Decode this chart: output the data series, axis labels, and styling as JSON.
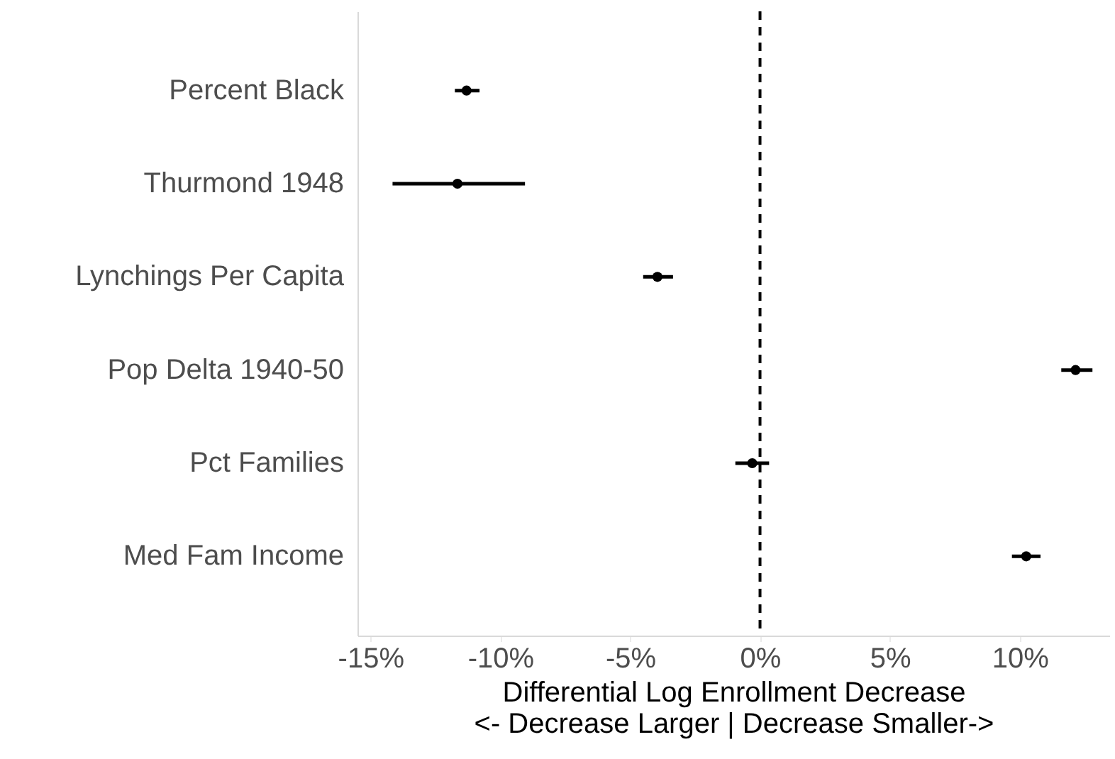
{
  "chart_data": {
    "type": "scatter",
    "orientation": "horizontal",
    "xlabel": "Differential Log Enrollment Decrease\n<- Decrease Larger | Decrease Smaller->",
    "categories": [
      "Percent Black",
      "Thurmond 1948",
      "Lynchings Per Capita",
      "Pop Delta 1940-50",
      "Pct Families",
      "Med Fam Income"
    ],
    "values": [
      -11.3,
      -11.65,
      -3.95,
      12.15,
      -0.3,
      10.25
    ],
    "errors": [
      [
        -11.75,
        -10.8
      ],
      [
        -14.15,
        -9.05
      ],
      [
        -4.5,
        -3.35
      ],
      [
        11.6,
        12.8
      ],
      [
        -0.95,
        0.35
      ],
      [
        9.7,
        10.8
      ]
    ],
    "color": "#000000",
    "marker": "circle",
    "xlim": [
      -15.5,
      13.45
    ],
    "xticks": [
      {
        "value": -15,
        "label": "-15%"
      },
      {
        "value": -10,
        "label": "-10%"
      },
      {
        "value": -5,
        "label": "-5%"
      },
      {
        "value": 0,
        "label": "0%"
      },
      {
        "value": 5,
        "label": "5%"
      },
      {
        "value": 10,
        "label": "10%"
      }
    ],
    "ref_lines": [
      {
        "axis": "x",
        "value": 0,
        "line_style": "dashed"
      }
    ]
  }
}
